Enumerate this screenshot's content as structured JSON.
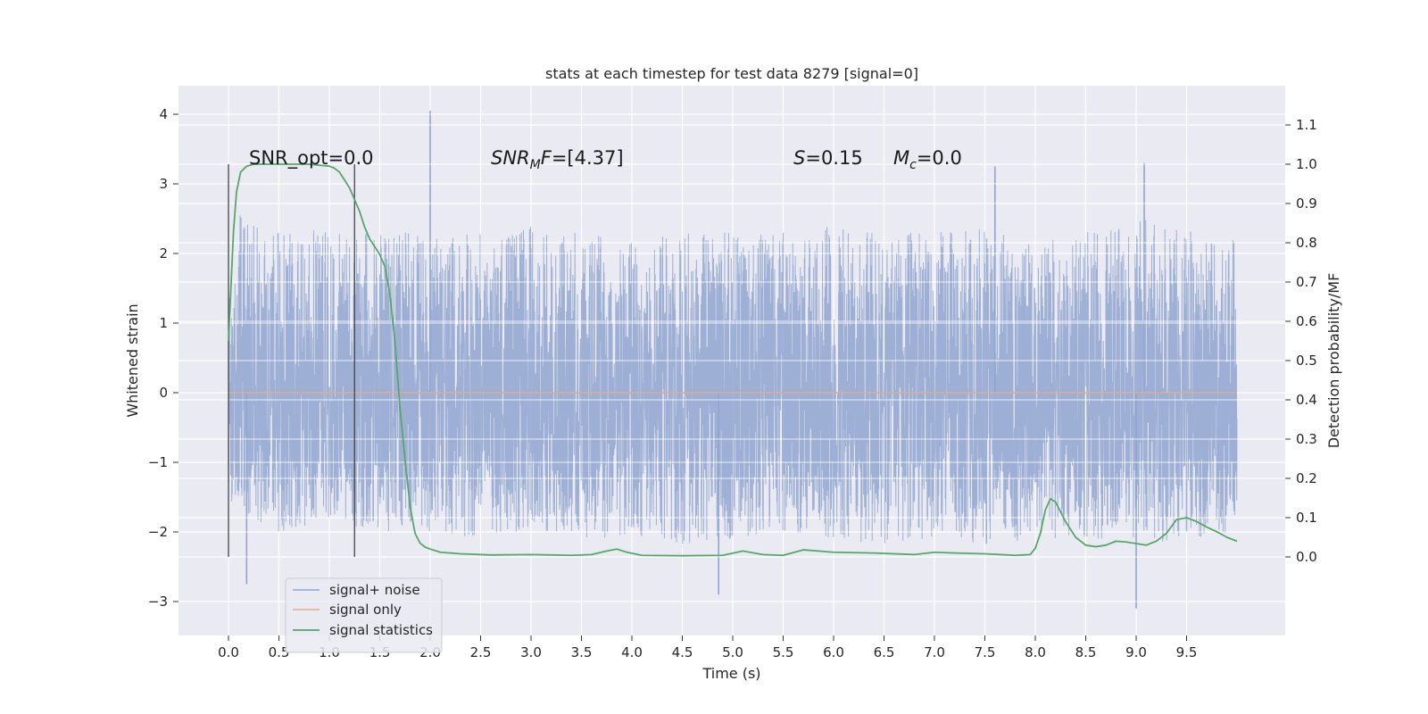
{
  "chart_data": {
    "type": "line",
    "title": "stats at each timestep for test data 8279 [signal=0]",
    "xlabel": "Time (s)",
    "ylabel": "Whitened strain",
    "ylabel_right": "Detection probability/MF",
    "xlim": [
      -0.5,
      10.5
    ],
    "ylim": [
      -3.5,
      4.4
    ],
    "ylim_right": [
      -0.2,
      1.2
    ],
    "xticks": [
      "0.0",
      "0.5",
      "1.0",
      "1.5",
      "2.0",
      "2.5",
      "3.0",
      "3.5",
      "4.0",
      "4.5",
      "5.0",
      "5.5",
      "6.0",
      "6.5",
      "7.0",
      "7.5",
      "8.0",
      "8.5",
      "9.0",
      "9.5"
    ],
    "yticks": [
      "4",
      "3",
      "2",
      "1",
      "0",
      "−1",
      "−2",
      "−3"
    ],
    "yticks_right": [
      "1.1",
      "1.0",
      "0.9",
      "0.8",
      "0.7",
      "0.6",
      "0.5",
      "0.4",
      "0.3",
      "0.2",
      "0.1",
      "0.0"
    ],
    "grid": true,
    "legend_position": "lower-left",
    "annotations": {
      "snr_opt": "SNR_opt=0.0",
      "snr_mf_base": "SNR",
      "snr_mf_sub": "M",
      "snr_mf_rest": "F=[4.37]",
      "s_var": "S",
      "s_val": "=0.15",
      "mc_var": "M",
      "mc_sub": "c",
      "mc_val": "=0.0"
    },
    "vlines_x": [
      0.0,
      1.25
    ],
    "series": [
      {
        "name": "signal+ noise",
        "color": "#8fa5cf",
        "axis": "left",
        "x_range": [
          0.0,
          10.0
        ],
        "envelope_x": [
          0,
          0.5,
          1,
          1.5,
          2,
          2.5,
          3,
          3.5,
          4,
          4.5,
          5,
          5.5,
          6,
          6.5,
          7,
          7.5,
          8,
          8.5,
          9,
          9.5,
          10
        ],
        "envelope_upper": [
          2.6,
          2.4,
          2.3,
          2.4,
          2.3,
          2.3,
          2.4,
          2.3,
          2.2,
          2.3,
          2.3,
          2.3,
          2.4,
          2.3,
          2.3,
          2.4,
          2.3,
          2.4,
          2.5,
          2.4,
          2.2
        ],
        "envelope_lower": [
          -1.8,
          -2.0,
          -1.9,
          -2.0,
          -2.0,
          -2.1,
          -2.0,
          -2.1,
          -2.1,
          -2.2,
          -2.1,
          -2.0,
          -2.1,
          -2.2,
          -2.1,
          -2.2,
          -2.1,
          -2.1,
          -2.1,
          -2.2,
          -2.1
        ],
        "spikes": [
          {
            "x": 2.0,
            "y": 4.05
          },
          {
            "x": 7.6,
            "y": 3.25
          },
          {
            "x": 9.08,
            "y": 3.3
          },
          {
            "x": 4.86,
            "y": -2.9
          },
          {
            "x": 9.0,
            "y": -3.1
          },
          {
            "x": 0.18,
            "y": -2.75
          }
        ]
      },
      {
        "name": "signal only",
        "color": "#e5a88b",
        "axis": "left",
        "x": [
          0,
          10
        ],
        "y": [
          0,
          0
        ]
      },
      {
        "name": "signal statistics",
        "color": "#55a868",
        "axis": "right",
        "x": [
          0.0,
          0.05,
          0.08,
          0.12,
          0.18,
          0.25,
          0.4,
          0.6,
          0.8,
          1.0,
          1.05,
          1.1,
          1.15,
          1.2,
          1.25,
          1.3,
          1.35,
          1.4,
          1.45,
          1.5,
          1.55,
          1.6,
          1.65,
          1.7,
          1.75,
          1.8,
          1.85,
          1.9,
          1.95,
          2.0,
          2.1,
          2.3,
          2.6,
          3.0,
          3.4,
          3.6,
          3.75,
          3.85,
          3.95,
          4.1,
          4.5,
          4.9,
          5.1,
          5.3,
          5.5,
          5.7,
          6.0,
          6.4,
          6.8,
          7.0,
          7.2,
          7.5,
          7.8,
          7.95,
          8.0,
          8.05,
          8.1,
          8.15,
          8.2,
          8.3,
          8.4,
          8.5,
          8.6,
          8.7,
          8.8,
          8.9,
          9.0,
          9.1,
          9.2,
          9.3,
          9.4,
          9.5,
          9.6,
          9.7,
          9.8,
          9.9,
          10.0
        ],
        "y": [
          0.55,
          0.83,
          0.93,
          0.98,
          0.995,
          1.0,
          1.0,
          1.0,
          1.0,
          0.995,
          0.99,
          0.98,
          0.96,
          0.94,
          0.91,
          0.88,
          0.84,
          0.81,
          0.79,
          0.77,
          0.74,
          0.67,
          0.55,
          0.38,
          0.25,
          0.13,
          0.06,
          0.035,
          0.025,
          0.02,
          0.012,
          0.008,
          0.005,
          0.006,
          0.004,
          0.006,
          0.015,
          0.02,
          0.012,
          0.004,
          0.003,
          0.004,
          0.015,
          0.006,
          0.004,
          0.018,
          0.012,
          0.01,
          0.006,
          0.012,
          0.01,
          0.008,
          0.004,
          0.006,
          0.022,
          0.06,
          0.12,
          0.148,
          0.14,
          0.09,
          0.05,
          0.03,
          0.026,
          0.03,
          0.04,
          0.038,
          0.034,
          0.03,
          0.04,
          0.06,
          0.095,
          0.1,
          0.09,
          0.076,
          0.064,
          0.05,
          0.04
        ]
      }
    ]
  }
}
